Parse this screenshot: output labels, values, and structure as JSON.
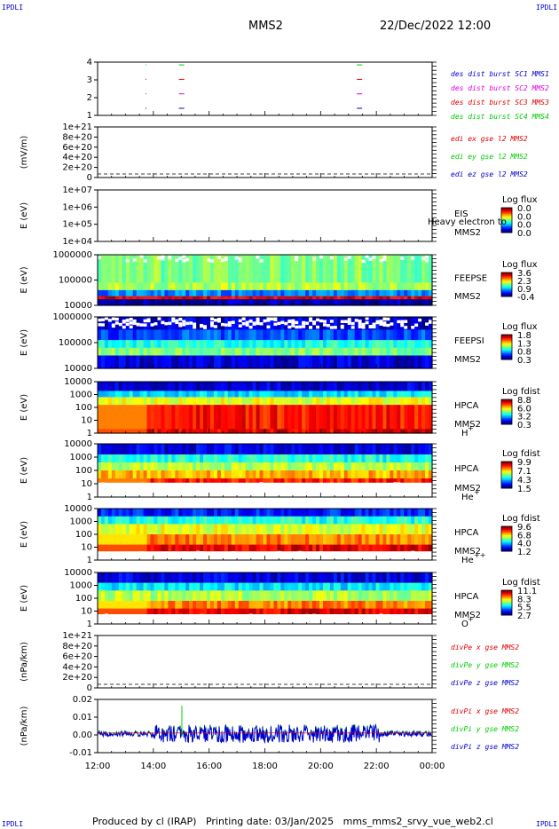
{
  "corners": [
    "IPDLI",
    "IPDLI",
    "IPDLI",
    "IPDLI"
  ],
  "header": {
    "spacecraft": "MMS2",
    "datetime": "22/Dec/2022 12:00"
  },
  "footer": "Produced by cl (IRAP)   Printing date: 03/Jan/2025   mms_mms2_srvy_vue_web2.cl",
  "colors": {
    "red": "#e00000",
    "green": "#00cc00",
    "blue": "#0000cc",
    "magenta": "#dd00dd"
  },
  "x_ticks": [
    "12:00",
    "14:00",
    "16:00",
    "18:00",
    "20:00",
    "22:00",
    "00:00"
  ],
  "panels": [
    {
      "id": "burst",
      "ylabel": "",
      "yticks": [
        "4",
        "3",
        "2",
        "1"
      ],
      "legend": [
        {
          "text": "des dist burst SC1 MMS1",
          "color": "#0000cc"
        },
        {
          "text": "des dist burst SC2 MMS2",
          "color": "#dd00dd"
        },
        {
          "text": "des dist burst SC3 MMS3",
          "color": "#e00000"
        },
        {
          "text": "des dist burst SC4 MMS4",
          "color": "#00cc00"
        }
      ]
    },
    {
      "id": "edi",
      "ylabel": "(mV/m)",
      "yticks": [
        "1e+21",
        "8e+20",
        "6e+20",
        "4e+20",
        "2e+20",
        "0"
      ],
      "legend": [
        {
          "text": "edi ex gse l2 MMS2",
          "color": "#e00000"
        },
        {
          "text": "edi ey gse l2 MMS2",
          "color": "#00cc00"
        },
        {
          "text": "edi ez gse l2 MMS2",
          "color": "#0000cc"
        }
      ]
    },
    {
      "id": "eis",
      "ylabel": "E (eV)",
      "yticks": [
        "1e+07",
        "1e+06",
        "1e+05",
        "1e+04"
      ],
      "labels": [
        "EIS",
        "MMS2"
      ],
      "overlay": "Heavy electron to",
      "cbar": {
        "title": "Log flux",
        "ticks": [
          "0.0",
          "0.0",
          "0.0",
          "0.0"
        ]
      }
    },
    {
      "id": "feepse",
      "ylabel": "E (eV)",
      "yticks": [
        "1000000",
        "100000",
        "10000"
      ],
      "labels": [
        "FEEPSE",
        "MMS2"
      ],
      "cbar": {
        "title": "Log flux",
        "ticks": [
          "3.6",
          "2.3",
          "0.9",
          "-0.4"
        ]
      }
    },
    {
      "id": "feepsi",
      "ylabel": "E (eV)",
      "yticks": [
        "1000000",
        "100000",
        "10000"
      ],
      "labels": [
        "FEEPSI",
        "MMS2"
      ],
      "cbar": {
        "title": "Log flux",
        "ticks": [
          "1.8",
          "1.3",
          "0.8",
          "0.3"
        ]
      }
    },
    {
      "id": "hpca_h",
      "ylabel": "E (eV)",
      "yticks": [
        "10000",
        "1000",
        "100",
        "10",
        "1"
      ],
      "labels": [
        "HPCA",
        "MMS2"
      ],
      "species": "H",
      "charge": "+",
      "cbar": {
        "title": "Log fdist",
        "ticks": [
          "8.8",
          "6.0",
          "3.2",
          "0.3"
        ]
      }
    },
    {
      "id": "hpca_he",
      "ylabel": "E (eV)",
      "yticks": [
        "10000",
        "1000",
        "100",
        "10",
        "1"
      ],
      "labels": [
        "HPCA",
        "MMS2"
      ],
      "species": "He",
      "charge": "+",
      "cbar": {
        "title": "Log fdist",
        "ticks": [
          "9.9",
          "7.1",
          "4.3",
          "1.5"
        ]
      }
    },
    {
      "id": "hpca_hepp",
      "ylabel": "E (eV)",
      "yticks": [
        "10000",
        "1000",
        "100",
        "10",
        "1"
      ],
      "labels": [
        "HPCA",
        "MMS2"
      ],
      "species": "He",
      "charge": "++",
      "cbar": {
        "title": "Log fdist",
        "ticks": [
          "9.6",
          "6.8",
          "4.0",
          "1.2"
        ]
      }
    },
    {
      "id": "hpca_o",
      "ylabel": "E (eV)",
      "yticks": [
        "10000",
        "1000",
        "100",
        "10",
        "1"
      ],
      "labels": [
        "HPCA",
        "MMS2"
      ],
      "species": "O",
      "charge": "+",
      "cbar": {
        "title": "Log fdist",
        "ticks": [
          "11.1",
          "8.3",
          "5.5",
          "2.7"
        ]
      }
    },
    {
      "id": "divpe",
      "ylabel": "(nPa/km)",
      "yticks": [
        "1e+21",
        "8e+20",
        "6e+20",
        "4e+20",
        "2e+20",
        "0"
      ],
      "legend": [
        {
          "text": "divPe x gse MMS2",
          "color": "#e00000"
        },
        {
          "text": "divPe y gse MMS2",
          "color": "#00cc00"
        },
        {
          "text": "divPe z gse MMS2",
          "color": "#0000cc"
        }
      ]
    },
    {
      "id": "divpi",
      "ylabel": "(nPa/km)",
      "yticks": [
        "0.02",
        "0.01",
        "0.00",
        "-0.01"
      ],
      "legend": [
        {
          "text": "divPi x gse MMS2",
          "color": "#e00000"
        },
        {
          "text": "divPi y gse MMS2",
          "color": "#00cc00"
        },
        {
          "text": "divPi z gse MMS2",
          "color": "#0000cc"
        }
      ]
    }
  ],
  "chart_data": {
    "type": "heatmap",
    "x_range": [
      "12:00",
      "00:00"
    ],
    "burst_markers": [
      {
        "sc": 1,
        "times": [
          "13:43",
          "14:55",
          "21:18"
        ]
      },
      {
        "sc": 2,
        "times": [
          "13:43",
          "14:55",
          "21:18"
        ]
      },
      {
        "sc": 3,
        "times": [
          "13:43",
          "14:55",
          "21:18"
        ]
      },
      {
        "sc": 4,
        "times": [
          "13:43",
          "14:55",
          "21:18"
        ]
      }
    ],
    "divpi_range": [
      -0.015,
      0.025
    ]
  }
}
